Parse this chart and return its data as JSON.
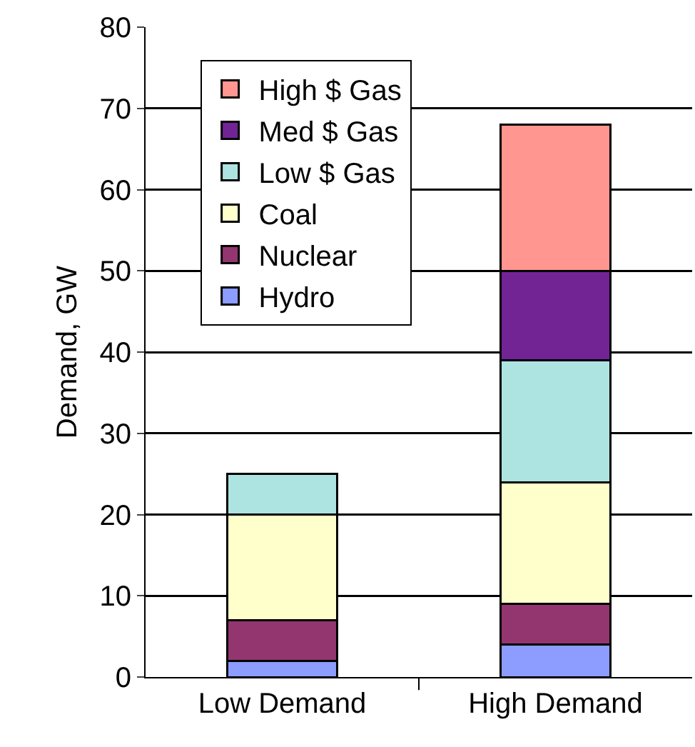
{
  "chart_data": {
    "type": "bar",
    "stacked": true,
    "ylabel": "Demand, GW",
    "categories": [
      "Low Demand",
      "High Demand"
    ],
    "series": [
      {
        "name": "Hydro",
        "color": "#8c9cff",
        "values": [
          2,
          4
        ]
      },
      {
        "name": "Nuclear",
        "color": "#933670",
        "values": [
          5,
          5
        ]
      },
      {
        "name": "Coal",
        "color": "#ffffcc",
        "values": [
          13,
          15
        ]
      },
      {
        "name": "Low $ Gas",
        "color": "#ade4e2",
        "values": [
          5,
          15
        ]
      },
      {
        "name": "Med $ Gas",
        "color": "#722494",
        "values": [
          null,
          11
        ]
      },
      {
        "name": "High $ Gas",
        "color": "#ff968f",
        "values": [
          null,
          18
        ]
      }
    ],
    "ylim": [
      0,
      80
    ],
    "yticks": [
      0,
      10,
      20,
      30,
      40,
      50,
      60,
      70,
      80
    ],
    "grid": "y",
    "legend": "top left"
  }
}
